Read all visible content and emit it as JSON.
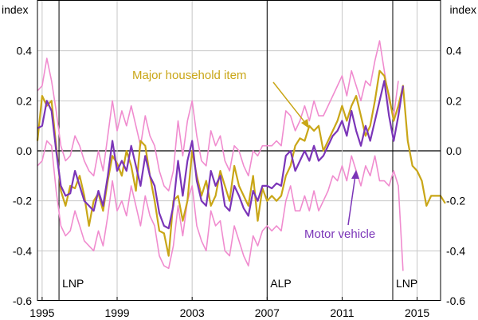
{
  "chart_data": {
    "type": "line",
    "left_axis_unit": "index",
    "right_axis_unit": "index",
    "ylim": [
      -0.6,
      0.6
    ],
    "yticks": [
      -0.6,
      -0.4,
      -0.2,
      0.0,
      0.2,
      0.4
    ],
    "ytick_labels": [
      "-0.6",
      "-0.4",
      "-0.2",
      "0.0",
      "0.2",
      "0.4"
    ],
    "xlim": [
      1994.75,
      2016.25
    ],
    "xticks": [
      1995,
      1999,
      2003,
      2007,
      2011,
      2015
    ],
    "xtick_labels": [
      "1995",
      "1999",
      "2003",
      "2007",
      "2011",
      "2015"
    ],
    "grid": true,
    "vertical_lines": [
      {
        "x": 1995.9,
        "label": "LNP"
      },
      {
        "x": 2007.0,
        "label": "ALP"
      },
      {
        "x": 2013.7,
        "label": "LNP"
      }
    ],
    "colors": {
      "major_household": "#c9a617",
      "motor_vehicle": "#7b35b8",
      "bands": "#f08ccf",
      "grid": "#c8c8c8",
      "axis": "#000000"
    },
    "annotations": [
      {
        "text": "Major household item",
        "color": "#c9a617"
      },
      {
        "text": "Motor vehicle",
        "color": "#7b35b8"
      }
    ],
    "series": [
      {
        "name": "Major household item",
        "x_start": 1994.75,
        "x_step": 0.25,
        "values": [
          0.04,
          0.22,
          0.18,
          0.2,
          0.02,
          -0.16,
          -0.22,
          -0.14,
          -0.15,
          -0.1,
          -0.18,
          -0.3,
          -0.2,
          -0.17,
          -0.24,
          -0.12,
          -0.02,
          -0.05,
          -0.1,
          0.0,
          -0.06,
          -0.16,
          0.04,
          0.02,
          -0.1,
          -0.2,
          -0.32,
          -0.33,
          -0.42,
          -0.2,
          -0.18,
          -0.28,
          -0.2,
          0.0,
          -0.1,
          -0.18,
          -0.12,
          -0.22,
          -0.18,
          -0.08,
          -0.14,
          -0.2,
          -0.06,
          -0.14,
          -0.18,
          -0.22,
          -0.1,
          -0.28,
          -0.15,
          -0.2,
          -0.18,
          -0.2,
          -0.18,
          -0.1,
          -0.06,
          0.02,
          0.05,
          0.04,
          0.1,
          0.08,
          0.1,
          0.0,
          0.04,
          0.08,
          0.12,
          0.18,
          0.12,
          0.18,
          0.22,
          0.14,
          0.06,
          0.1,
          0.2,
          0.32,
          0.3,
          0.22,
          0.12,
          0.18,
          0.26,
          0.04,
          -0.06,
          -0.08,
          -0.12,
          -0.22,
          -0.18,
          -0.18,
          -0.18,
          -0.21
        ]
      },
      {
        "name": "Motor vehicle",
        "x_start": 1994.75,
        "x_step": 0.25,
        "values": [
          0.09,
          0.1,
          0.2,
          0.16,
          0.0,
          -0.14,
          -0.18,
          -0.17,
          -0.08,
          -0.14,
          -0.2,
          -0.22,
          -0.24,
          -0.16,
          -0.22,
          -0.1,
          0.04,
          -0.08,
          -0.04,
          -0.08,
          0.02,
          -0.06,
          -0.14,
          -0.02,
          -0.1,
          -0.14,
          -0.25,
          -0.3,
          -0.31,
          -0.22,
          -0.04,
          -0.18,
          -0.04,
          0.04,
          -0.12,
          -0.2,
          -0.22,
          -0.08,
          -0.14,
          -0.1,
          -0.22,
          -0.24,
          -0.14,
          -0.18,
          -0.23,
          -0.26,
          -0.16,
          -0.2,
          -0.14,
          -0.14,
          -0.15,
          -0.13,
          -0.14,
          -0.02,
          0.0,
          -0.08,
          -0.04,
          0.0,
          -0.04,
          0.02,
          -0.04,
          -0.02,
          0.02,
          0.06,
          0.08,
          0.12,
          0.06,
          0.16,
          0.08,
          0.02,
          0.1,
          0.04,
          0.12,
          0.2,
          0.28,
          0.14,
          0.04,
          0.14,
          0.26
        ]
      },
      {
        "name": "Upper band",
        "x_start": 1994.75,
        "x_step": 0.25,
        "values": [
          0.24,
          0.26,
          0.37,
          0.28,
          0.16,
          0.02,
          -0.04,
          -0.02,
          0.06,
          0.02,
          -0.04,
          -0.08,
          -0.1,
          0.0,
          -0.08,
          0.06,
          0.2,
          0.08,
          0.16,
          0.1,
          0.18,
          0.1,
          0.02,
          0.14,
          0.06,
          0.02,
          -0.08,
          -0.14,
          -0.16,
          -0.08,
          0.12,
          -0.02,
          0.12,
          0.2,
          0.06,
          -0.04,
          -0.06,
          0.08,
          0.02,
          0.06,
          -0.04,
          -0.08,
          0.02,
          0.0,
          -0.06,
          -0.1,
          0.0,
          -0.02,
          0.02,
          0.02,
          0.02,
          0.04,
          0.02,
          0.16,
          0.14,
          0.08,
          0.12,
          0.18,
          0.12,
          0.2,
          0.14,
          0.14,
          0.18,
          0.22,
          0.26,
          0.3,
          0.22,
          0.32,
          0.26,
          0.2,
          0.28,
          0.26,
          0.36,
          0.44,
          0.32,
          0.2,
          0.14,
          0.28
        ]
      },
      {
        "name": "Lower band",
        "x_start": 1994.75,
        "x_step": 0.25,
        "values": [
          -0.06,
          -0.04,
          0.04,
          0.02,
          -0.16,
          -0.3,
          -0.34,
          -0.32,
          -0.24,
          -0.3,
          -0.36,
          -0.38,
          -0.4,
          -0.32,
          -0.38,
          -0.26,
          -0.12,
          -0.24,
          -0.2,
          -0.26,
          -0.14,
          -0.22,
          -0.3,
          -0.18,
          -0.26,
          -0.3,
          -0.42,
          -0.46,
          -0.47,
          -0.38,
          -0.22,
          -0.34,
          -0.2,
          -0.14,
          -0.3,
          -0.36,
          -0.4,
          -0.24,
          -0.3,
          -0.28,
          -0.4,
          -0.42,
          -0.3,
          -0.36,
          -0.42,
          -0.46,
          -0.34,
          -0.38,
          -0.32,
          -0.3,
          -0.32,
          -0.3,
          -0.32,
          -0.2,
          -0.14,
          -0.24,
          -0.24,
          -0.18,
          -0.24,
          -0.16,
          -0.24,
          -0.2,
          -0.16,
          -0.1,
          -0.12,
          -0.06,
          -0.12,
          -0.02,
          -0.08,
          -0.14,
          -0.06,
          -0.1,
          -0.02,
          -0.12,
          -0.12,
          -0.14,
          -0.08,
          -0.14,
          -0.48
        ]
      }
    ]
  }
}
